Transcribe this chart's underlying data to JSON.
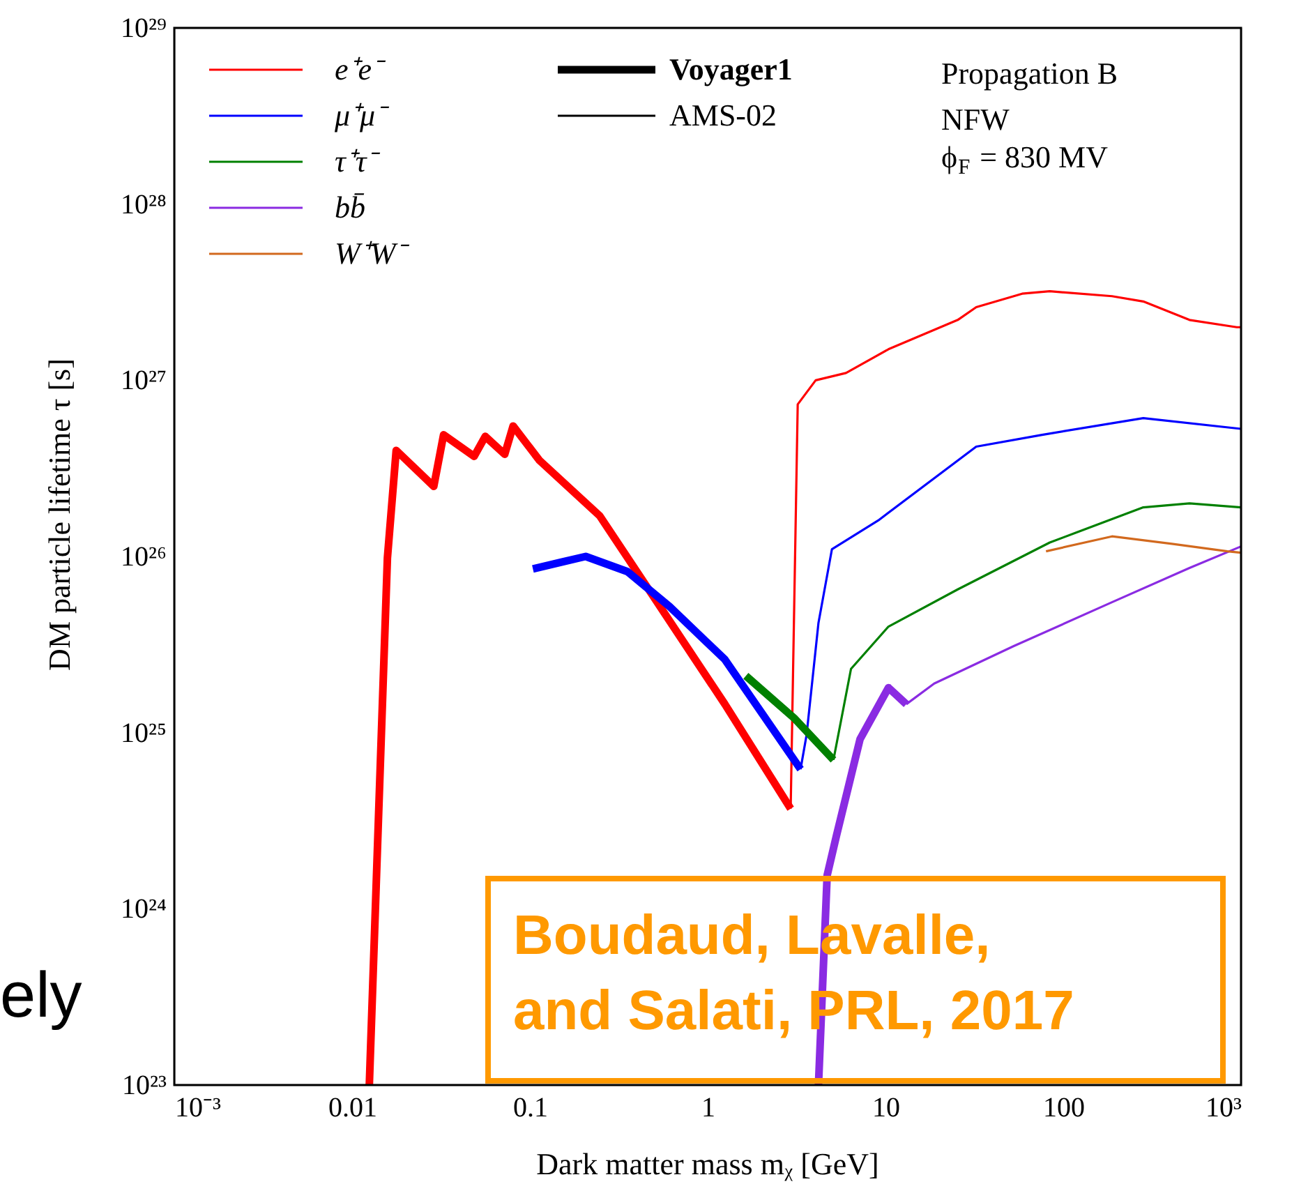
{
  "chart_data": {
    "type": "line",
    "xlabel": "Dark matter mass mᵪ [GeV]",
    "ylabel": "DM particle lifetime τ [s]",
    "log": "xy",
    "xlim": [
      0.001,
      1000
    ],
    "ylim": [
      1e+23,
      1e+29
    ],
    "xticks": [
      {
        "value": 0.001,
        "label": "10⁻³"
      },
      0.01,
      0.1,
      1,
      10,
      100,
      {
        "value": 1000,
        "label": "10³"
      }
    ],
    "yticks": [
      {
        "value": 1e+23,
        "label": "10²³"
      },
      {
        "value": 1e+24,
        "label": "10²⁴"
      },
      {
        "value": 1e+25,
        "label": "10²⁵"
      },
      {
        "value": 1e+26,
        "label": "10²⁶"
      },
      {
        "value": 1e+27,
        "label": "10²⁷"
      },
      {
        "value": 1e+28,
        "label": "10²⁸"
      },
      {
        "value": 1e+29,
        "label": "10²⁹"
      }
    ],
    "grid": false,
    "legend": "top left",
    "marker": "none",
    "line_style": "solid",
    "annotations": [
      "Propagation B",
      "NFW",
      "ϕ$_{F}$ = 830 MV",
      "Voyager1",
      "AMS-02",
      "Boudaud, Lavalle,\nand Salati, PRL, 2017",
      "ely"
    ],
    "series": [
      {
        "color": "#ff0000",
        "x": [
          0.0125,
          0.0158,
          0.0177,
          0.0288,
          0.0327,
          0.0486,
          0.0561,
          0.0722,
          0.0805,
          0.1135,
          0.247,
          0.508,
          1.25,
          2.93
        ],
        "values": [
          1e+23,
          9.8e+25,
          4e+26,
          2.5e+26,
          4.9e+26,
          3.7e+26,
          4.8e+26,
          3.8e+26,
          5.5e+26,
          3.5e+26,
          1.7e+26,
          5.7e+25,
          1.45e+25,
          3.7e+24
        ]
      },
      {
        "name": "e⁺e⁻",
        "color": "#ff0000",
        "x": [
          2.93,
          3.21,
          4.05,
          6.0,
          10.4,
          25.5,
          32.4,
          58.7,
          84,
          188,
          282,
          513,
          946,
          1000
        ],
        "values": [
          3.7e+24,
          7.3e+26,
          1e+27,
          1.1e+27,
          1.5e+27,
          2.2e+27,
          2.6e+27,
          3.1e+27,
          3.2e+27,
          3e+27,
          2.8e+27,
          2.2e+27,
          2e+27,
          2e+27
        ]
      },
      {
        "color": "#0000ff",
        "x": [
          0.104,
          0.152,
          0.206,
          0.354,
          0.61,
          1.25,
          3.33
        ],
        "values": [
          8.5e+25,
          9.3e+25,
          1e+26,
          8.2e+25,
          5.2e+25,
          2.6e+25,
          6.2e+24
        ]
      },
      {
        "name": "μ⁺μ⁻",
        "color": "#0000ff",
        "x": [
          3.33,
          3.6,
          4.2,
          5.0,
          9.1,
          32.4,
          76,
          282,
          1000
        ],
        "values": [
          6.2e+24,
          9.7e+24,
          4.2e+25,
          1.1e+26,
          1.6e+26,
          4.2e+26,
          4.9e+26,
          6.1e+26,
          5.3e+26
        ]
      },
      {
        "color": "#008000",
        "x": [
          1.64,
          3.09,
          5.1
        ],
        "values": [
          2.1e+25,
          1.2e+25,
          7e+24
        ]
      },
      {
        "name": "τ⁺τ⁻",
        "color": "#008000",
        "x": [
          5.1,
          6.4,
          10.4,
          25.5,
          84,
          282,
          513,
          1000
        ],
        "values": [
          7e+24,
          2.3e+25,
          4e+25,
          6.5e+25,
          1.2e+26,
          1.9e+26,
          2e+26,
          1.9e+26
        ]
      },
      {
        "color": "#8a2be2",
        "x": [
          4.2,
          4.7,
          5.3,
          7.2,
          10.4,
          13.1
        ],
        "values": [
          1e+23,
          1.55e+24,
          2.6e+24,
          9.2e+24,
          1.8e+25,
          1.45e+25
        ]
      },
      {
        "name": "bb̄",
        "color": "#8a2be2",
        "x": [
          13.1,
          18.8,
          52.7,
          188,
          513,
          1000
        ],
        "values": [
          1.45e+25,
          1.9e+25,
          3.1e+25,
          5.5e+25,
          8.6e+25,
          1.14e+26
        ]
      },
      {
        "name": "W⁺W⁻",
        "color": "#d2691e",
        "x": [
          80,
          188,
          408,
          838,
          1000
        ],
        "values": [
          1.07e+26,
          1.3e+26,
          1.18e+26,
          1.07e+26,
          1.05e+26
        ]
      }
    ]
  }
}
